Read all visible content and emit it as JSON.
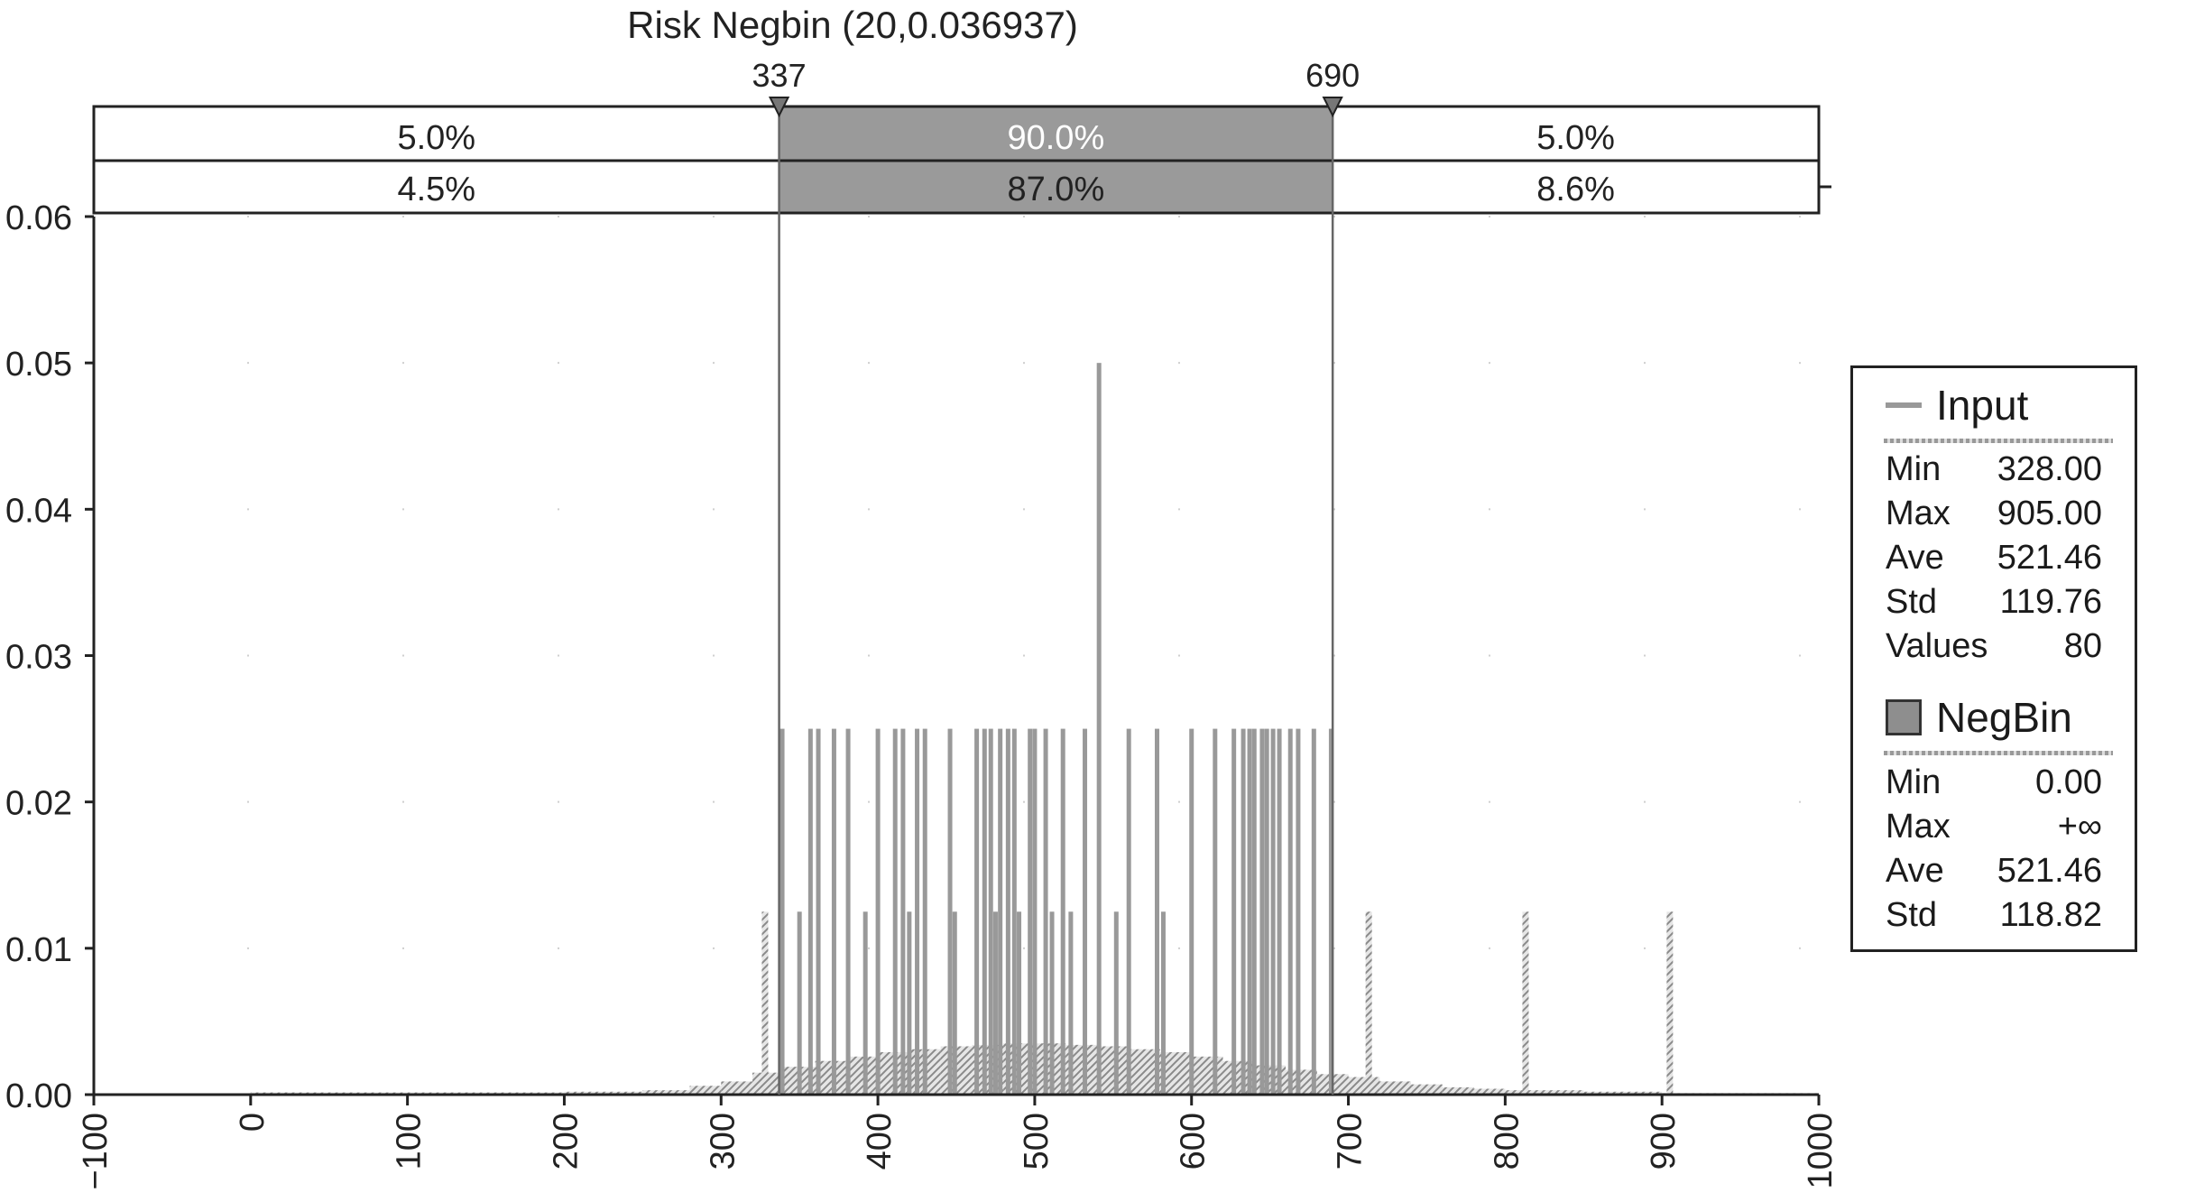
{
  "chart_data": {
    "type": "bar",
    "title": "Risk Negbin (20,0.036937)",
    "xlim": [
      -100,
      1000
    ],
    "ylim": [
      0,
      0.06
    ],
    "x_ticks": [
      "−100",
      "0",
      "100",
      "200",
      "300",
      "400",
      "500",
      "600",
      "700",
      "800",
      "900",
      "1000"
    ],
    "y_ticks": [
      "0.00",
      "0.01",
      "0.02",
      "0.03",
      "0.04",
      "0.05",
      "0.06"
    ],
    "grid": true,
    "markers": [
      {
        "label": "337",
        "x": 337
      },
      {
        "label": "690",
        "x": 690
      }
    ],
    "percent_bands": {
      "input_row": [
        "5.0%",
        "90.0%",
        "5.0%"
      ],
      "negbin_row": [
        "4.5%",
        "87.0%",
        "8.6%"
      ]
    },
    "series": [
      {
        "name": "Input",
        "values_x": [
          328,
          339,
          350,
          357,
          362,
          372,
          381,
          392,
          400,
          411,
          416,
          420,
          425,
          430,
          446,
          449,
          463,
          468,
          472,
          475,
          478,
          483,
          487,
          490,
          497,
          500,
          507,
          511,
          518,
          523,
          532,
          541,
          552,
          560,
          578,
          582,
          600,
          615,
          627,
          633,
          637,
          640,
          645,
          648,
          652,
          656,
          663,
          668,
          678,
          689,
          713,
          813,
          905
        ],
        "values_y": [
          0.0125,
          0.025,
          0.0125,
          0.025,
          0.025,
          0.025,
          0.025,
          0.0125,
          0.025,
          0.025,
          0.025,
          0.0125,
          0.025,
          0.025,
          0.025,
          0.0125,
          0.025,
          0.025,
          0.025,
          0.0125,
          0.025,
          0.025,
          0.025,
          0.0125,
          0.025,
          0.025,
          0.025,
          0.0125,
          0.025,
          0.0125,
          0.025,
          0.05,
          0.0125,
          0.025,
          0.025,
          0.0125,
          0.025,
          0.025,
          0.025,
          0.025,
          0.025,
          0.025,
          0.025,
          0.025,
          0.025,
          0.025,
          0.025,
          0.025,
          0.025,
          0.025,
          0.0125,
          0.0125,
          0.0125
        ]
      },
      {
        "name": "NegBin",
        "values_x": [
          0,
          100,
          200,
          250,
          280,
          300,
          320,
          340,
          360,
          380,
          400,
          420,
          440,
          460,
          480,
          500,
          520,
          540,
          560,
          580,
          600,
          620,
          640,
          660,
          680,
          700,
          720,
          740,
          760,
          780,
          800,
          850,
          900,
          1000
        ],
        "values_y": [
          0.00015,
          0.00015,
          0.0002,
          0.0003,
          0.0006,
          0.0009,
          0.0015,
          0.0019,
          0.0023,
          0.0026,
          0.0029,
          0.0031,
          0.0033,
          0.0034,
          0.0035,
          0.0035,
          0.0034,
          0.0033,
          0.0031,
          0.0029,
          0.0026,
          0.0023,
          0.002,
          0.0017,
          0.0014,
          0.0012,
          0.0009,
          0.0007,
          0.0005,
          0.0004,
          0.0003,
          0.0002,
          0.0001,
          5e-05
        ]
      }
    ]
  },
  "legend": {
    "input": {
      "name": "Input",
      "rows": [
        {
          "label": "Min",
          "value": "328.00"
        },
        {
          "label": "Max",
          "value": "905.00"
        },
        {
          "label": "Ave",
          "value": "521.46"
        },
        {
          "label": "Std",
          "value": "119.76"
        },
        {
          "label": "Values",
          "value": "80"
        }
      ]
    },
    "negbin": {
      "name": "NegBin",
      "rows": [
        {
          "label": "Min",
          "value": "0.00"
        },
        {
          "label": "Max",
          "value": "+∞"
        },
        {
          "label": "Ave",
          "value": "521.46"
        },
        {
          "label": "Std",
          "value": "118.82"
        }
      ]
    }
  },
  "colors": {
    "bar": "#999999",
    "band_fill": "#9a9a9a",
    "frame": "#222222"
  }
}
